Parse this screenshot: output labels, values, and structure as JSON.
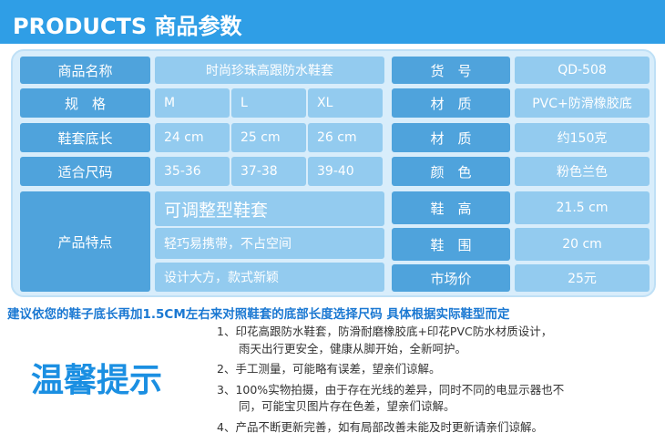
{
  "header": {
    "title": "PRODUCTS 商品参数"
  },
  "table": {
    "rows": [
      [
        "商品名称",
        "时尚珍珠高跟防水鞋套",
        "货　号",
        "QD-508"
      ],
      [
        "规　格",
        "M",
        "L",
        "XL",
        "材　质",
        "PVC+防滑橡胶底"
      ],
      [
        "鞋套底长",
        "24 cm",
        "25 cm",
        "26 cm",
        "材　质",
        "约150克"
      ],
      [
        "适合尺码",
        "35-36",
        "37-38",
        "39-40",
        "颜　色",
        "粉色兰色"
      ]
    ],
    "features": {
      "label": "产品特点",
      "items": [
        "可调整型鞋套",
        "轻巧易携带，不占空间",
        "设计大方，款式新颖"
      ],
      "specs": [
        [
          "鞋　高",
          "21.5 cm"
        ],
        [
          "鞋　围",
          "20 cm"
        ],
        [
          "市场价",
          "25元"
        ]
      ]
    }
  },
  "notice": "建议依您的鞋子底长再加1.5CM左右来对照鞋套的底部长度选择尺码 具体根据实际鞋型而定",
  "tips": {
    "title": "温馨提示",
    "items": [
      [
        "1、印花高跟防水鞋套，防滑耐磨橡胶底+印花PVC防水材质设计，",
        "雨天出行更安全，健康从脚开始，全新呵护。"
      ],
      [
        "2、手工测量，可能略有误差，望亲们谅解。"
      ],
      [
        "3、100%实物拍摄，由于存在光线的差异，同时不同的电显示器也不",
        "同，可能宝贝图片存在色差，望亲们谅解。"
      ],
      [
        "4、产品不断更新完善，如有局部改善未能及时更新请亲们谅解。"
      ]
    ]
  }
}
